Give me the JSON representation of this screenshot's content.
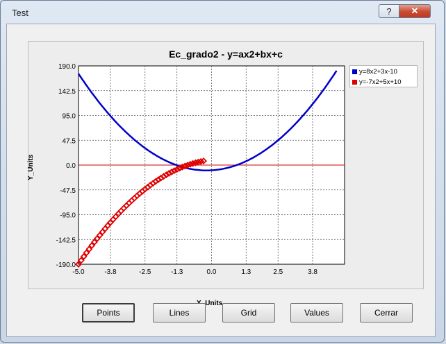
{
  "window": {
    "title": "Test",
    "help_label": "?",
    "close_label": "✕"
  },
  "buttons": {
    "points": "Points",
    "lines": "Lines",
    "grid": "Grid",
    "values": "Values",
    "cerrar": "Cerrar"
  },
  "chart_data": {
    "type": "scatter",
    "title": "Ec_grado2 - y=ax2+bx+c",
    "xlabel": "X_Units",
    "ylabel": "Y_Units",
    "xlim": [
      -5.0,
      5.0
    ],
    "ylim": [
      -190.0,
      190.0
    ],
    "x_ticks": [
      "-5.0",
      "-3.8",
      "-2.5",
      "-1.3",
      "0.0",
      "1.3",
      "2.5",
      "3.8"
    ],
    "y_ticks": [
      "190.0",
      "142.5",
      "95.0",
      "47.5",
      "0.0",
      "-47.5",
      "-95.0",
      "-142.5",
      "-190.0"
    ],
    "grid": true,
    "legend_position": "top-right",
    "series": [
      {
        "name": "y=8x2+3x-10",
        "a": 8,
        "b": 3,
        "c": -10,
        "style": "line",
        "color": "#0000c8"
      },
      {
        "name": "y=-7x2+5x+10",
        "a": -7,
        "b": 5,
        "c": 10,
        "style": "markers",
        "color": "#e00000"
      }
    ],
    "x_step": 0.1,
    "zero_line_color": "#cc0000"
  }
}
